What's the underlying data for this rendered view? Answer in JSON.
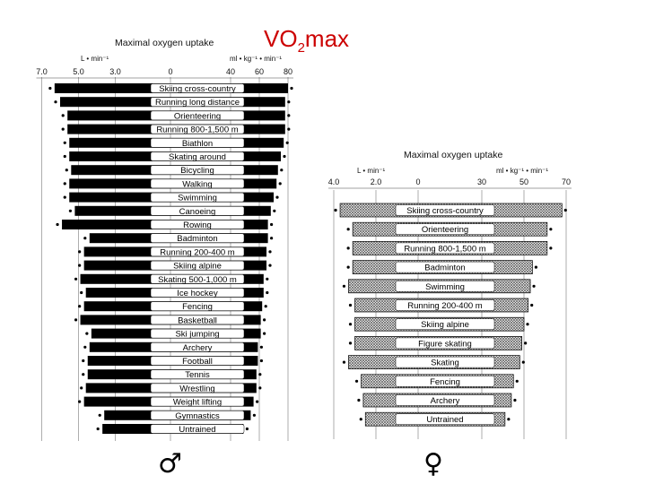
{
  "title": {
    "main": "VO",
    "sub": "2",
    "rest": "max"
  },
  "symbols": {
    "male": "♂",
    "female": "♀"
  },
  "chart_data": [
    {
      "type": "bar",
      "title": "Maximal oxygen uptake",
      "left_unit": "L • min⁻¹",
      "right_unit": "ml • kg⁻¹ • min⁻¹",
      "left_ticks": [
        "7.0",
        "5.0",
        "3.0",
        "0"
      ],
      "right_ticks": [
        "40",
        "60",
        "80"
      ],
      "color": "#000000",
      "categories": [
        "Skiing cross-country",
        "Running long distance",
        "Orienteering",
        "Running 800-1,500 m",
        "Biathlon",
        "Skating around",
        "Bicycling",
        "Walking",
        "Swimming",
        "Canoeing",
        "Rowing",
        "Badminton",
        "Running 200-400 m",
        "Skiing alpine",
        "Skating 500-1,000 m",
        "Ice hockey",
        "Fencing",
        "Basketball",
        "Ski jumping",
        "Archery",
        "Football",
        "Tennis",
        "Wrestling",
        "Weight lifting",
        "Gymnastics",
        "Untrained"
      ],
      "absolute_L_min": [
        6.3,
        6.0,
        5.6,
        5.6,
        5.5,
        5.5,
        5.4,
        5.5,
        5.5,
        5.2,
        5.9,
        4.4,
        4.7,
        4.7,
        4.9,
        4.6,
        4.7,
        4.9,
        4.3,
        4.4,
        4.5,
        4.5,
        4.6,
        4.7,
        3.6,
        3.7
      ],
      "relative_ml_kg_min": [
        80,
        78,
        78,
        78,
        77,
        75,
        73,
        72,
        70,
        68,
        66,
        66,
        65,
        65,
        63,
        63,
        62,
        61,
        61,
        59,
        59,
        58,
        58,
        56,
        54,
        49
      ]
    },
    {
      "type": "bar",
      "title": "Maximal oxygen uptake",
      "left_unit": "L • min⁻¹",
      "right_unit": "ml • kg⁻¹ • min⁻¹",
      "left_ticks": [
        "4.0",
        "2.0",
        "0"
      ],
      "right_ticks": [
        "30",
        "50",
        "70"
      ],
      "color": "#b8b8b8",
      "categories": [
        "Skiing cross-country",
        "Orienteering",
        "Running 800-1,500 m",
        "Badminton",
        "Swimming",
        "Running 200-400 m",
        "Skiing alpine",
        "Figure skating",
        "Skating",
        "Fencing",
        "Archery",
        "Untrained"
      ],
      "absolute_L_min": [
        3.7,
        3.1,
        3.1,
        3.1,
        3.3,
        3.0,
        3.0,
        3.0,
        3.3,
        2.7,
        2.6,
        2.5
      ],
      "relative_ml_kg_min": [
        68,
        61,
        61,
        54,
        53,
        52,
        50,
        49,
        48,
        45,
        44,
        41
      ]
    }
  ]
}
